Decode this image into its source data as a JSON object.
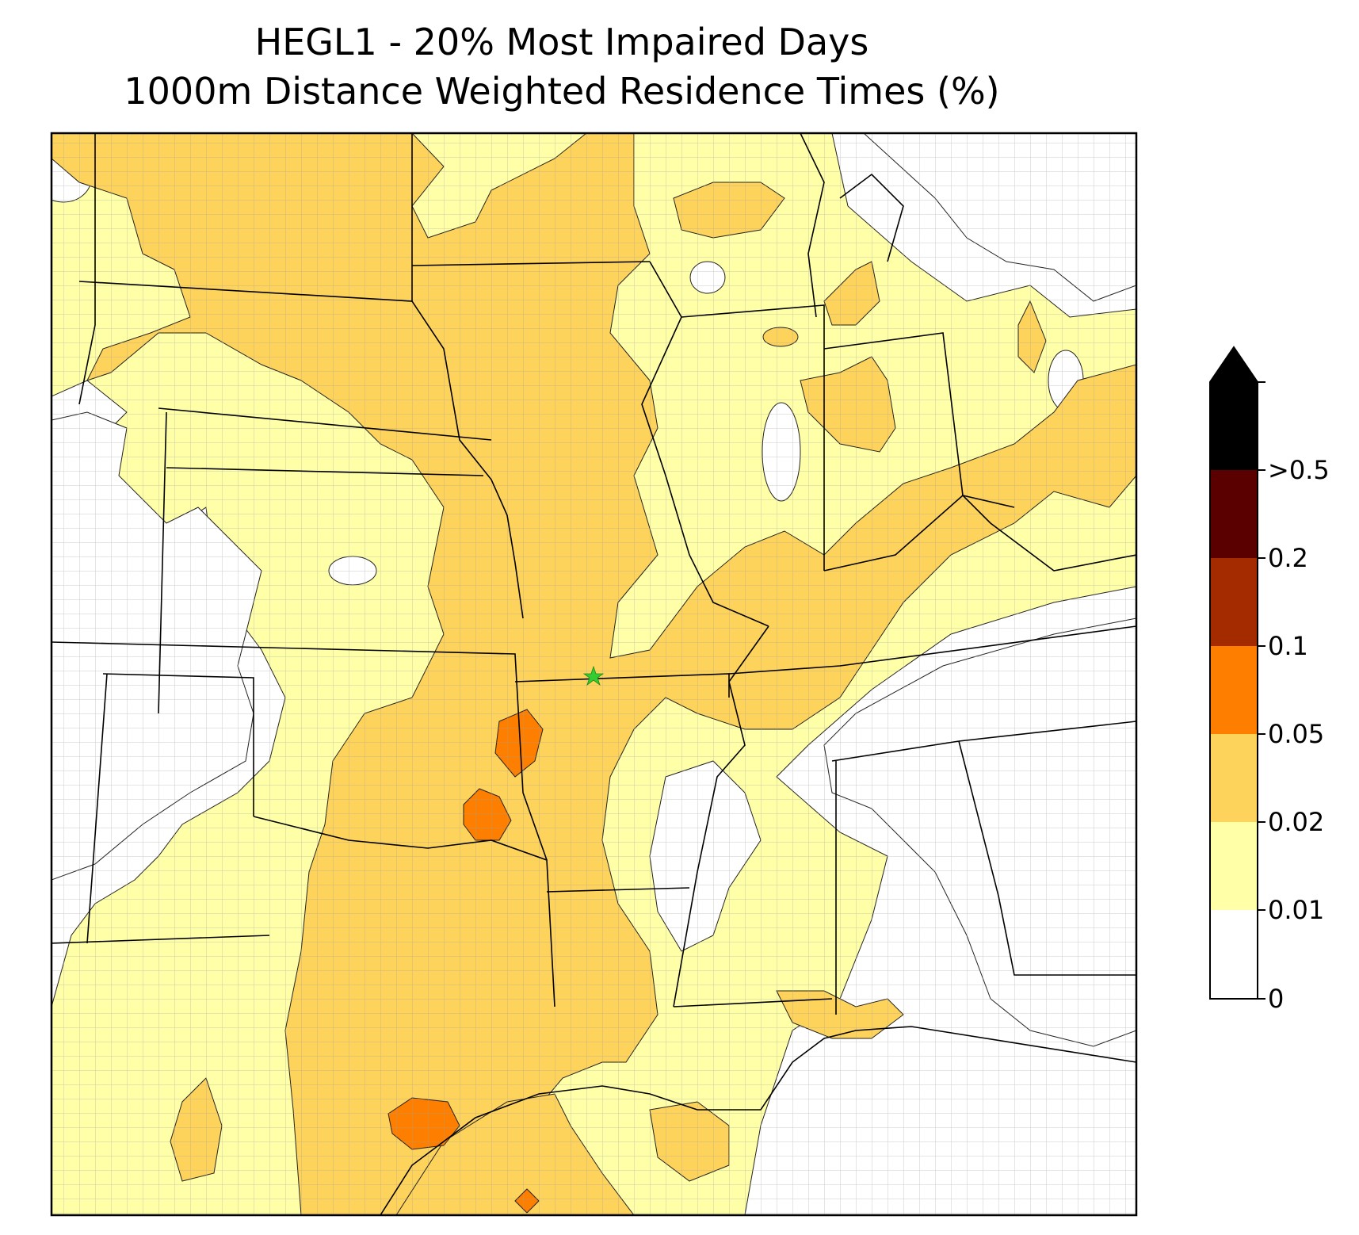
{
  "title": {
    "line1": "HEGL1 - 20% Most Impaired Days",
    "line2": "1000m Distance Weighted Residence Times (%)"
  },
  "colors": {
    "band_0_001": "#ffffff",
    "band_001_002": "#ffffa8",
    "band_002_005": "#fed35b",
    "band_005_01": "#fe7f00",
    "band_01_02": "#a42a00",
    "band_02_05": "#5a0000",
    "band_gt05": "#000000",
    "state_border": "#000000",
    "county_border": "#a0a0a0",
    "receptor": "#33cc33"
  },
  "colorbar": {
    "labels": [
      "0",
      "0.01",
      "0.02",
      "0.05",
      "0.1",
      "0.2",
      ">0.5"
    ],
    "extend": "max"
  },
  "map_legend_marker": "receptor-star-icon"
}
